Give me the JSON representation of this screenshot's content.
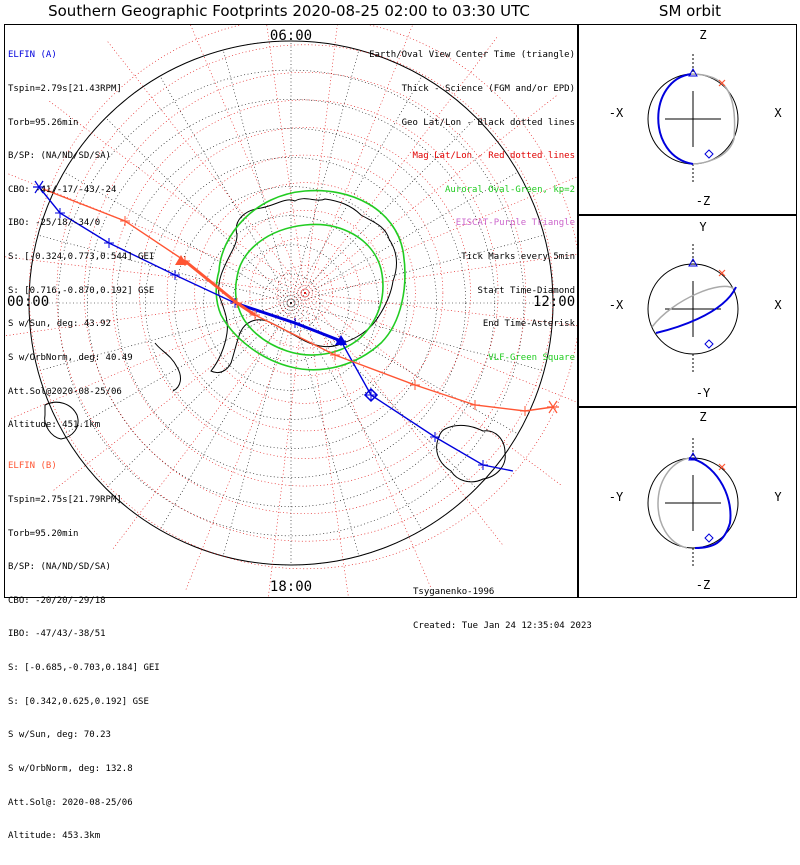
{
  "title": "Southern Geographic Footprints 2020-08-25 02:00 to 03:30 UTC",
  "sm_title": "SM orbit",
  "hour_labels": {
    "top": "06:00",
    "left": "00:00",
    "right": "12:00",
    "bottom": "18:00"
  },
  "elfin_a": {
    "name": "ELFIN (A)",
    "lines": [
      "Tspin=2.79s[21.43RPM]",
      "Torb=95.26min",
      "B/SP: (NA/ND/SD/SA)",
      "CBO: -41/-17/-43/-24",
      "IBO: -25/18/-34/0",
      "S: [-0.324,0.773,0.544] GEI",
      "S: [0.716,-0.870,0.192] GSE",
      "S w/Sun, deg: 43.92",
      "S w/OrbNorm, deg: 40.49",
      "Att.Sol@2020-08-25/06",
      "Altitude: 451.1km"
    ]
  },
  "elfin_b": {
    "name": "ELFIN (B)",
    "lines": [
      "Tspin=2.75s[21.79RPM]",
      "Torb=95.20min",
      "B/SP: (NA/ND/SD/SA)",
      "CBO: -20/20/-29/18",
      "IBO: -47/43/-38/51",
      "S: [-0.685,-0.703,0.184] GEI",
      "S: [0.342,0.625,0.192] GSE",
      "S w/Sun, deg: 70.23",
      "S w/OrbNorm, deg: 132.8",
      "Att.Sol@: 2020-08-25/06",
      "Altitude: 453.3km"
    ]
  },
  "legend": [
    {
      "text": "Earth/Oval View Center Time (triangle)",
      "color": "#000000"
    },
    {
      "text": "Thick - Science (FGM and/or EPD)",
      "color": "#000000"
    },
    {
      "text": "Geo Lat/Lon - Black dotted lines",
      "color": "#000000"
    },
    {
      "text": "Mag Lat/Lon - Red dotted lines",
      "color": "#e00000"
    },
    {
      "text": "Auroral Oval-Green, kp=2",
      "color": "#22cc22"
    },
    {
      "text": "EISCAT-Purple Triangle",
      "color": "#cc66cc"
    },
    {
      "text": "Tick Marks every 5min",
      "color": "#000000"
    },
    {
      "text": "Start Time-Diamond",
      "color": "#000000"
    },
    {
      "text": "End Time-Asterisk",
      "color": "#000000"
    },
    {
      "text": "VLF-Green Square",
      "color": "#22cc22"
    }
  ],
  "credits": {
    "model": "Tsyganenko-1996",
    "created": "Created: Tue Jan 24 12:35:04 2023"
  },
  "colors": {
    "elfin_a": "#0000dd",
    "elfin_b": "#ff5533",
    "oval": "#22cc22",
    "mag_grid": "#e00000",
    "geo_grid": "#000000"
  },
  "sm_panels": [
    {
      "top": "Z",
      "bottom": "-Z",
      "left": "-X",
      "right": "X"
    },
    {
      "top": "Y",
      "bottom": "-Y",
      "left": "-X",
      "right": "X"
    },
    {
      "top": "Z",
      "bottom": "-Z",
      "left": "-Y",
      "right": "Y"
    }
  ],
  "chart_data": {
    "type": "scatter",
    "projection": "south polar geographic",
    "series": [
      {
        "name": "ELFIN (A)",
        "color": "#0000dd"
      },
      {
        "name": "ELFIN (B)",
        "color": "#ff5533"
      }
    ]
  }
}
